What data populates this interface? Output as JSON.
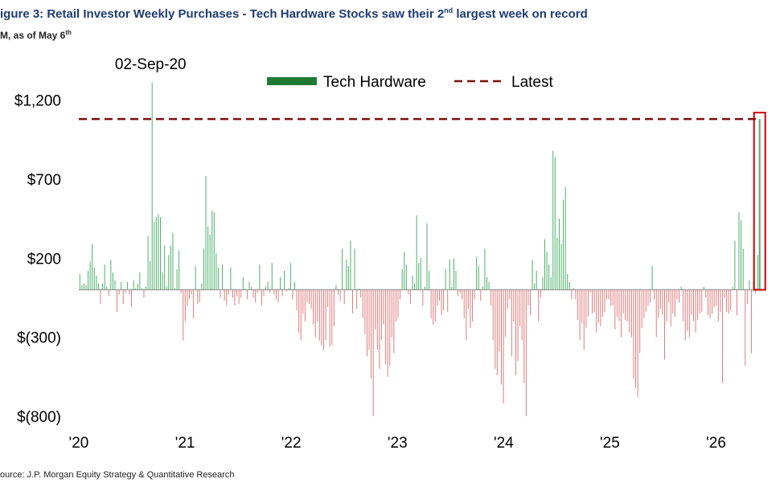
{
  "header": {
    "title": "igure 3: Retail Investor Weekly Purchases - Tech Hardware Stocks saw their 2",
    "title_sup": "nd",
    "title_tail": " largest week on record",
    "subtitle": "M, as of May 6",
    "subtitle_sup": "th"
  },
  "footer": {
    "source": "ource: J.P. Morgan Equity Strategy & Quantitative Research"
  },
  "chart_data": {
    "type": "bar",
    "ylim": [
      -800,
      1350
    ],
    "yticks": [
      1200,
      700,
      200,
      -300,
      -800
    ],
    "ytick_labels": [
      "$1,200",
      "$700",
      "$200",
      "$(300)",
      "$(800)"
    ],
    "xtick_labels": [
      "'20",
      "'21",
      "'22",
      "'23",
      "'24",
      "'25",
      "'26"
    ],
    "xtick_years": [
      2020,
      2021,
      2022,
      2023,
      2024,
      2025,
      2026
    ],
    "x_range": [
      2020.0,
      2026.42
    ],
    "legend": {
      "placement": "top",
      "series_label": "Tech Hardware",
      "latest_label": "Latest"
    },
    "annotation": {
      "text": "02-Sep-20",
      "date": "2020-09-02",
      "value": 1310
    },
    "latest_value": 1080,
    "colors": {
      "positive": "#4caf6a",
      "positive_legend": "#1f7a33",
      "negative": "#e07b7b",
      "latest": "#7a0f0f",
      "highlight_box": "#cc0000",
      "axis_text": "#000000"
    },
    "series": [
      {
        "name": "Tech Hardware",
        "start": "2020-01-01",
        "frequency": "weekly",
        "values": [
          100,
          30,
          40,
          30,
          120,
          180,
          290,
          140,
          90,
          40,
          -90,
          40,
          160,
          20,
          -40,
          190,
          110,
          60,
          -140,
          -30,
          50,
          -90,
          -20,
          50,
          -30,
          -110,
          60,
          10,
          40,
          110,
          10,
          -50,
          20,
          340,
          180,
          1310,
          430,
          460,
          480,
          460,
          110,
          280,
          20,
          220,
          280,
          360,
          10,
          130,
          250,
          -20,
          -320,
          -200,
          -100,
          -60,
          -30,
          -180,
          150,
          -90,
          -80,
          40,
          260,
          720,
          400,
          350,
          500,
          490,
          230,
          140,
          -50,
          160,
          -70,
          -100,
          -30,
          140,
          -50,
          -100,
          -40,
          -90,
          -50,
          80,
          10,
          -60,
          50,
          20,
          -50,
          -80,
          -20,
          160,
          -100,
          -40,
          20,
          50,
          -20,
          170,
          -30,
          -60,
          -80,
          80,
          -40,
          120,
          -10,
          10,
          170,
          -60,
          50,
          -130,
          -270,
          -320,
          -150,
          -200,
          -80,
          -90,
          -120,
          -220,
          -300,
          -200,
          -320,
          -350,
          -380,
          -320,
          -110,
          -360,
          -350,
          -230,
          30,
          -30,
          -70,
          260,
          -90,
          190,
          150,
          310,
          -150,
          260,
          -120,
          10,
          -50,
          -180,
          -280,
          -420,
          -380,
          -560,
          -800,
          -250,
          -380,
          -500,
          -320,
          -220,
          -470,
          -550,
          -480,
          -300,
          -400,
          -200,
          -180,
          -60,
          130,
          240,
          160,
          -30,
          -90,
          90,
          40,
          470,
          170,
          200,
          -100,
          20,
          420,
          120,
          -180,
          -220,
          -200,
          -100,
          -70,
          -160,
          -130,
          130,
          -140,
          190,
          20,
          200,
          120,
          -40,
          -20,
          -60,
          -180,
          -320,
          -120,
          -240,
          -200,
          -60,
          210,
          150,
          -70,
          20,
          260,
          80,
          50,
          -100,
          -320,
          -500,
          -540,
          -390,
          -600,
          -720,
          -300,
          -120,
          -60,
          -420,
          -200,
          -540,
          -450,
          -230,
          -320,
          -590,
          -800,
          -100,
          -160,
          190,
          40,
          120,
          -200,
          -50,
          80,
          320,
          240,
          160,
          80,
          880,
          840,
          330,
          450,
          290,
          570,
          650,
          100,
          50,
          -60,
          10,
          -60,
          -190,
          -320,
          -210,
          -380,
          -240,
          -170,
          -20,
          -150,
          -140,
          -270,
          -210,
          -230,
          -170,
          -140,
          -60,
          -60,
          -100,
          -100,
          -250,
          -170,
          -200,
          -300,
          -150,
          -190,
          -200,
          -270,
          -300,
          -560,
          -620,
          -680,
          -400,
          -240,
          -180,
          -140,
          -100,
          -80,
          150,
          -60,
          -300,
          -180,
          -120,
          -160,
          -440,
          -200,
          -80,
          -230,
          -150,
          -170,
          -60,
          -80,
          20,
          -200,
          -320,
          -260,
          -300,
          -160,
          -200,
          -270,
          -190,
          -150,
          -140,
          20,
          -50,
          -160,
          -180,
          -150,
          -110,
          -100,
          -200,
          -140,
          -590,
          -50,
          -140,
          -150,
          -130,
          20,
          310,
          -160,
          490,
          440,
          260,
          -480,
          -90,
          60,
          -400,
          50,
          -20,
          220,
          1080
        ]
      }
    ]
  }
}
